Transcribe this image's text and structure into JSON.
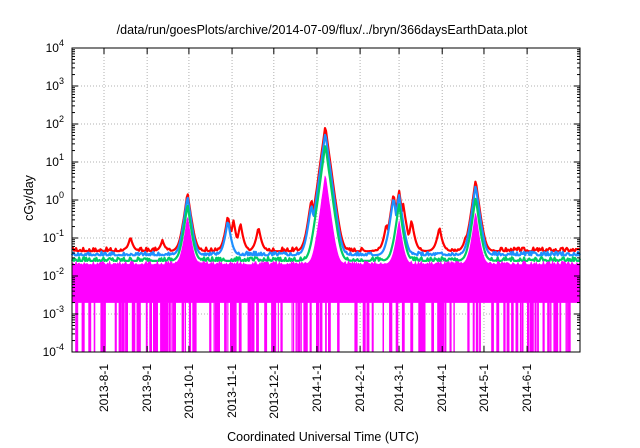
{
  "chart_data": {
    "type": "line",
    "title": "/data/run/goesPlots/archive/2014-07-09/flux/../bryn/366daysEarthData.plot",
    "xlabel": "Coordinated Universal Time (UTC)",
    "ylabel": "cGy/day",
    "yscale": "log",
    "ylim": [
      0.0001,
      10000
    ],
    "xlim": [
      "2013-07-09",
      "2014-07-09"
    ],
    "grid": true,
    "y_ticks": [
      {
        "value": 0.0001,
        "base": "10",
        "exp": "-4"
      },
      {
        "value": 0.001,
        "base": "10",
        "exp": "-3"
      },
      {
        "value": 0.01,
        "base": "10",
        "exp": "-2"
      },
      {
        "value": 0.1,
        "base": "10",
        "exp": "-1"
      },
      {
        "value": 1,
        "base": "10",
        "exp": "0"
      },
      {
        "value": 10,
        "base": "10",
        "exp": "1"
      },
      {
        "value": 100,
        "base": "10",
        "exp": "2"
      },
      {
        "value": 1000,
        "base": "10",
        "exp": "3"
      },
      {
        "value": 10000,
        "base": "10",
        "exp": "4"
      }
    ],
    "x_ticks": [
      "2013-8-1",
      "2013-9-1",
      "2013-10-1",
      "2013-11-1",
      "2013-12-1",
      "2014-1-1",
      "2014-2-1",
      "2014-3-1",
      "2014-4-1",
      "2014-5-1",
      "2014-6-1"
    ],
    "x_tick_dates": [
      "2013-08-01",
      "2013-09-01",
      "2013-10-01",
      "2013-11-01",
      "2013-12-01",
      "2014-01-01",
      "2014-02-01",
      "2014-03-01",
      "2014-04-01",
      "2014-05-01",
      "2014-06-01"
    ],
    "series": [
      {
        "color": "#ff0000",
        "baseline": 0.045,
        "points": [
          [
            "2013-07-09",
            0.05
          ],
          [
            "2013-08-20",
            0.11
          ],
          [
            "2013-09-12",
            0.09
          ],
          [
            "2013-09-30",
            1.6
          ],
          [
            "2013-10-03",
            0.3
          ],
          [
            "2013-10-29",
            0.4
          ],
          [
            "2013-11-02",
            0.3
          ],
          [
            "2013-11-07",
            0.25
          ],
          [
            "2013-11-20",
            0.2
          ],
          [
            "2013-12-28",
            1.1
          ],
          [
            "2014-01-07",
            90
          ],
          [
            "2014-01-09",
            8
          ],
          [
            "2014-01-12",
            0.5
          ],
          [
            "2014-02-20",
            0.25
          ],
          [
            "2014-02-25",
            1.5
          ],
          [
            "2014-03-01",
            1.8
          ],
          [
            "2014-03-04",
            0.8
          ],
          [
            "2014-03-10",
            0.3
          ],
          [
            "2014-03-30",
            0.2
          ],
          [
            "2014-04-18",
            0.12
          ],
          [
            "2014-04-25",
            3.4
          ],
          [
            "2014-04-28",
            0.5
          ],
          [
            "2014-07-09",
            0.05
          ]
        ]
      },
      {
        "color": "#1e90ff",
        "baseline": 0.035,
        "points": [
          [
            "2013-09-30",
            1.3
          ],
          [
            "2013-10-29",
            0.3
          ],
          [
            "2013-12-28",
            0.8
          ],
          [
            "2014-01-07",
            60
          ],
          [
            "2014-02-25",
            1.2
          ],
          [
            "2014-03-01",
            1.4
          ],
          [
            "2014-04-25",
            2.5
          ]
        ]
      },
      {
        "color": "#00cc66",
        "baseline": 0.025,
        "points": [
          [
            "2013-09-30",
            0.8
          ],
          [
            "2014-01-07",
            30
          ],
          [
            "2014-03-01",
            0.8
          ],
          [
            "2014-04-25",
            1.2
          ]
        ]
      },
      {
        "color": "#ff00ff",
        "baseline": 0.02,
        "floor": 0.002,
        "dropouts_to": 0.0001,
        "points": [
          [
            "2013-09-30",
            0.4
          ],
          [
            "2014-01-07",
            5
          ],
          [
            "2014-03-01",
            0.3
          ],
          [
            "2014-04-25",
            0.5
          ]
        ]
      }
    ]
  }
}
